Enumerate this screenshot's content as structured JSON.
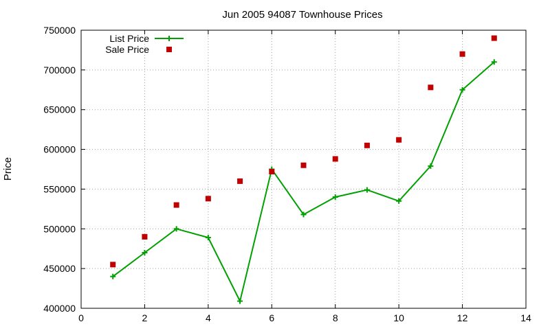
{
  "chart_data": {
    "type": "line",
    "title": "Jun 2005 94087 Townhouse Prices",
    "xlabel": "",
    "ylabel": "Price",
    "xlim": [
      0,
      14
    ],
    "ylim": [
      400000,
      750000
    ],
    "xticks": [
      0,
      2,
      4,
      6,
      8,
      10,
      12,
      14
    ],
    "yticks": [
      400000,
      450000,
      500000,
      550000,
      600000,
      650000,
      700000,
      750000
    ],
    "grid": true,
    "legend_position": "top-left",
    "series": [
      {
        "name": "List Price",
        "style": "line-with-plus-markers",
        "color": "#00a000",
        "x": [
          1,
          2,
          3,
          4,
          5,
          6,
          7,
          8,
          9,
          10,
          11,
          12,
          13
        ],
        "y": [
          440000,
          470000,
          500000,
          489000,
          409000,
          575000,
          518000,
          540000,
          549000,
          535000,
          579000,
          675000,
          710000
        ]
      },
      {
        "name": "Sale Price",
        "style": "square-markers",
        "color": "#c00000",
        "x": [
          1,
          2,
          3,
          4,
          5,
          6,
          7,
          8,
          9,
          10,
          11,
          12,
          13
        ],
        "y": [
          455000,
          490000,
          530000,
          538000,
          560000,
          572000,
          580000,
          588000,
          605000,
          612000,
          678000,
          720000,
          740000
        ]
      }
    ]
  }
}
